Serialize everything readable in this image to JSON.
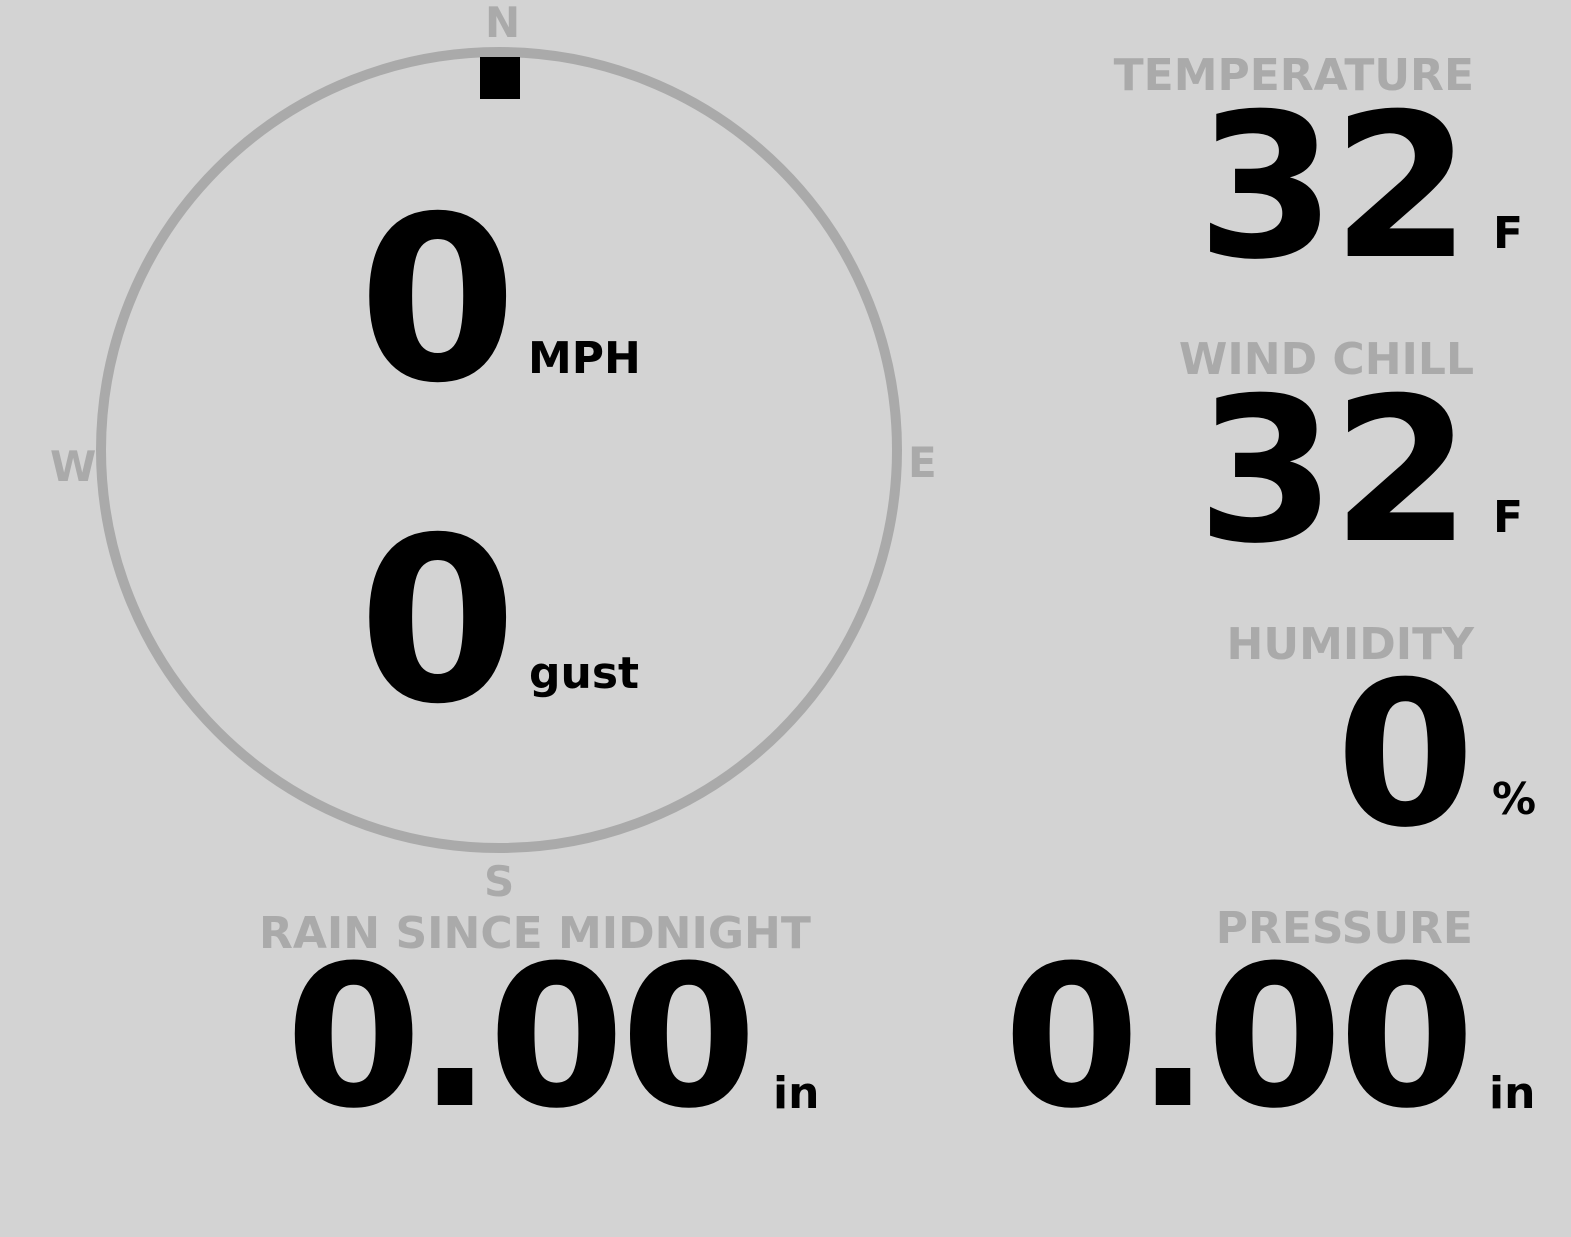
{
  "compass": {
    "north": "N",
    "east": "E",
    "south": "S",
    "west": "W",
    "wind_direction_deg": 0,
    "ring_color": "#aaaaaa",
    "pointer_color": "#000000"
  },
  "wind": {
    "speed": "0",
    "speed_unit": "MPH",
    "gust": "0",
    "gust_unit": "gust"
  },
  "temperature": {
    "label": "TEMPERATURE",
    "value": "32",
    "unit": "F"
  },
  "wind_chill": {
    "label": "WIND CHILL",
    "value": "32",
    "unit": "F"
  },
  "humidity": {
    "label": "HUMIDITY",
    "value": "0",
    "unit": "%"
  },
  "rain": {
    "label": "RAIN SINCE MIDNIGHT",
    "value": "0.00",
    "unit": "in"
  },
  "pressure": {
    "label": "PRESSURE",
    "value": "0.00",
    "unit": "in"
  },
  "colors": {
    "background": "#d3d3d3",
    "label": "#aaaaaa",
    "value": "#000000"
  }
}
